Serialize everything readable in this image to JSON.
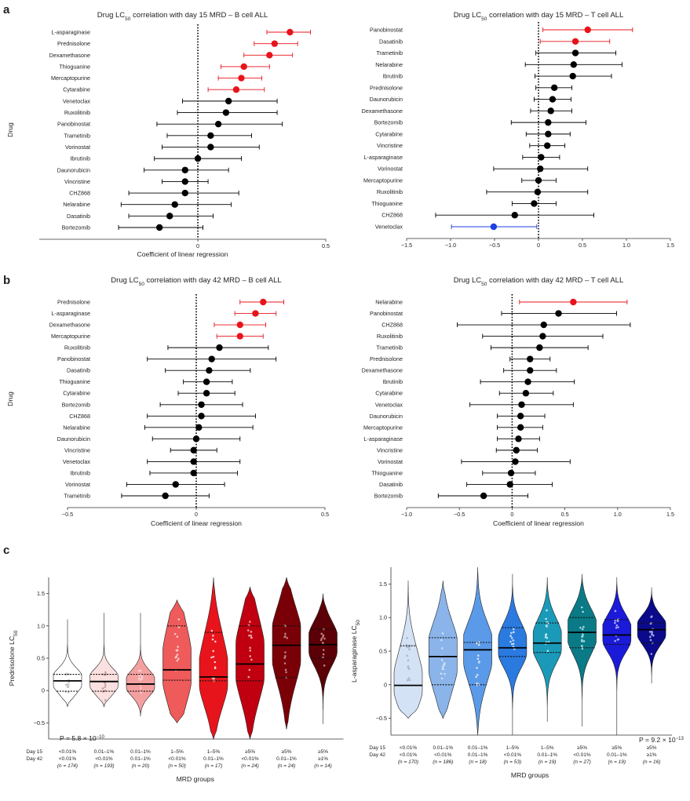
{
  "figure": {
    "panels": [
      "a",
      "b",
      "c"
    ],
    "colors": {
      "red": "#e8141b",
      "black": "#000000",
      "blue": "#1f3fe0",
      "axis": "#333333"
    }
  },
  "chart_data": [
    {
      "id": "a-left",
      "type": "forest",
      "title": "Drug LC50 correlation with day 15 MRD – B cell ALL",
      "xlabel": "Coefficient of linear regression",
      "ylabel": "Drug",
      "xlim": [
        -0.62,
        0.5
      ],
      "xticks": [
        0,
        0.5
      ],
      "xtick_labels": [
        "0",
        "0.5"
      ],
      "rows": [
        {
          "drug": "L-asparaginase",
          "est": 0.36,
          "lo": 0.27,
          "hi": 0.44,
          "sig": "red"
        },
        {
          "drug": "Prednisolone",
          "est": 0.3,
          "lo": 0.22,
          "hi": 0.39,
          "sig": "red"
        },
        {
          "drug": "Dexamethasone",
          "est": 0.28,
          "lo": 0.18,
          "hi": 0.37,
          "sig": "red"
        },
        {
          "drug": "Thioguanine",
          "est": 0.18,
          "lo": 0.09,
          "hi": 0.28,
          "sig": "red"
        },
        {
          "drug": "Mercaptopurine",
          "est": 0.17,
          "lo": 0.08,
          "hi": 0.25,
          "sig": "red"
        },
        {
          "drug": "Cytarabine",
          "est": 0.15,
          "lo": 0.04,
          "hi": 0.26,
          "sig": "red"
        },
        {
          "drug": "Venetoclax",
          "est": 0.12,
          "lo": -0.06,
          "hi": 0.31,
          "sig": "black"
        },
        {
          "drug": "Ruxolitinib",
          "est": 0.11,
          "lo": -0.08,
          "hi": 0.31,
          "sig": "black"
        },
        {
          "drug": "Panobinostat",
          "est": 0.08,
          "lo": -0.16,
          "hi": 0.33,
          "sig": "black"
        },
        {
          "drug": "Trametinib",
          "est": 0.05,
          "lo": -0.12,
          "hi": 0.21,
          "sig": "black"
        },
        {
          "drug": "Vorinostat",
          "est": 0.05,
          "lo": -0.14,
          "hi": 0.24,
          "sig": "black"
        },
        {
          "drug": "Ibrutinib",
          "est": 0.0,
          "lo": -0.17,
          "hi": 0.17,
          "sig": "black"
        },
        {
          "drug": "Daunorubicin",
          "est": -0.05,
          "lo": -0.21,
          "hi": 0.12,
          "sig": "black"
        },
        {
          "drug": "Vincristine",
          "est": -0.05,
          "lo": -0.14,
          "hi": 0.04,
          "sig": "black"
        },
        {
          "drug": "CHZ868",
          "est": -0.05,
          "lo": -0.27,
          "hi": 0.16,
          "sig": "black"
        },
        {
          "drug": "Nelarabine",
          "est": -0.09,
          "lo": -0.3,
          "hi": 0.13,
          "sig": "black"
        },
        {
          "drug": "Dasatinib",
          "est": -0.11,
          "lo": -0.27,
          "hi": 0.06,
          "sig": "black"
        },
        {
          "drug": "Bortezomib",
          "est": -0.15,
          "lo": -0.31,
          "hi": 0.02,
          "sig": "black"
        }
      ]
    },
    {
      "id": "a-right",
      "type": "forest",
      "title": "Drug LC50 correlation with day 15 MRD – T cell ALL",
      "xlabel": "",
      "ylabel": "",
      "xlim": [
        -1.5,
        1.5
      ],
      "xticks": [
        -1.5,
        -1.0,
        -0.5,
        0,
        0.5,
        1.0,
        1.5
      ],
      "xtick_labels": [
        "−1.5",
        "−1.0",
        "−0.5",
        "0",
        "0.5",
        "1.0",
        "1.5"
      ],
      "rows": [
        {
          "drug": "Panobinostat",
          "est": 0.56,
          "lo": 0.05,
          "hi": 1.07,
          "sig": "red"
        },
        {
          "drug": "Dasatinib",
          "est": 0.42,
          "lo": 0.02,
          "hi": 0.81,
          "sig": "red"
        },
        {
          "drug": "Trametinib",
          "est": 0.42,
          "lo": -0.03,
          "hi": 0.88,
          "sig": "black"
        },
        {
          "drug": "Nelarabine",
          "est": 0.4,
          "lo": -0.15,
          "hi": 0.95,
          "sig": "black"
        },
        {
          "drug": "Ibrutinib",
          "est": 0.39,
          "lo": -0.04,
          "hi": 0.83,
          "sig": "black"
        },
        {
          "drug": "Prednisolone",
          "est": 0.18,
          "lo": -0.03,
          "hi": 0.38,
          "sig": "black"
        },
        {
          "drug": "Daunorubicin",
          "est": 0.16,
          "lo": -0.05,
          "hi": 0.37,
          "sig": "black"
        },
        {
          "drug": "Dexamethasone",
          "est": 0.14,
          "lo": -0.09,
          "hi": 0.38,
          "sig": "black"
        },
        {
          "drug": "Bortezomib",
          "est": 0.11,
          "lo": -0.31,
          "hi": 0.54,
          "sig": "black"
        },
        {
          "drug": "Cytarabine",
          "est": 0.11,
          "lo": -0.14,
          "hi": 0.36,
          "sig": "black"
        },
        {
          "drug": "Vincristine",
          "est": 0.1,
          "lo": -0.1,
          "hi": 0.3,
          "sig": "black"
        },
        {
          "drug": "L-asparaginase",
          "est": 0.03,
          "lo": -0.18,
          "hi": 0.24,
          "sig": "black"
        },
        {
          "drug": "Vorinostat",
          "est": 0.02,
          "lo": -0.51,
          "hi": 0.56,
          "sig": "black"
        },
        {
          "drug": "Mercaptopurine",
          "est": 0.0,
          "lo": -0.19,
          "hi": 0.2,
          "sig": "black"
        },
        {
          "drug": "Ruxolitinib",
          "est": -0.01,
          "lo": -0.59,
          "hi": 0.56,
          "sig": "black"
        },
        {
          "drug": "Thioguanine",
          "est": -0.05,
          "lo": -0.3,
          "hi": 0.2,
          "sig": "black"
        },
        {
          "drug": "CHZ868",
          "est": -0.27,
          "lo": -1.17,
          "hi": 0.63,
          "sig": "black"
        },
        {
          "drug": "Venetoclax",
          "est": -0.51,
          "lo": -0.99,
          "hi": -0.02,
          "sig": "blue"
        }
      ]
    },
    {
      "id": "b-left",
      "type": "forest",
      "title": "Drug LC50 correlation with day 42 MRD – B cell ALL",
      "xlabel": "Coefficient of linear regression",
      "ylabel": "Drug",
      "xlim": [
        -0.5,
        0.5
      ],
      "xticks": [
        -0.5,
        0,
        0.5
      ],
      "xtick_labels": [
        "−0.5",
        "0",
        "0.5"
      ],
      "rows": [
        {
          "drug": "Prednisolone",
          "est": 0.26,
          "lo": 0.17,
          "hi": 0.34,
          "sig": "red"
        },
        {
          "drug": "L-asparaginase",
          "est": 0.23,
          "lo": 0.15,
          "hi": 0.31,
          "sig": "red"
        },
        {
          "drug": "Dexamethasone",
          "est": 0.17,
          "lo": 0.07,
          "hi": 0.27,
          "sig": "red"
        },
        {
          "drug": "Mercaptopurine",
          "est": 0.17,
          "lo": 0.08,
          "hi": 0.26,
          "sig": "red"
        },
        {
          "drug": "Ruxolitinib",
          "est": 0.09,
          "lo": -0.11,
          "hi": 0.28,
          "sig": "black"
        },
        {
          "drug": "Panobinostat",
          "est": 0.06,
          "lo": -0.19,
          "hi": 0.31,
          "sig": "black"
        },
        {
          "drug": "Dasatinib",
          "est": 0.05,
          "lo": -0.12,
          "hi": 0.21,
          "sig": "black"
        },
        {
          "drug": "Thioguanine",
          "est": 0.04,
          "lo": -0.05,
          "hi": 0.14,
          "sig": "black"
        },
        {
          "drug": "Cytarabine",
          "est": 0.04,
          "lo": -0.07,
          "hi": 0.15,
          "sig": "black"
        },
        {
          "drug": "Bortezomib",
          "est": 0.02,
          "lo": -0.14,
          "hi": 0.18,
          "sig": "black"
        },
        {
          "drug": "CHZ868",
          "est": 0.02,
          "lo": -0.19,
          "hi": 0.23,
          "sig": "black"
        },
        {
          "drug": "Nelarabine",
          "est": 0.01,
          "lo": -0.2,
          "hi": 0.22,
          "sig": "black"
        },
        {
          "drug": "Daunorubicin",
          "est": 0.0,
          "lo": -0.17,
          "hi": 0.17,
          "sig": "black"
        },
        {
          "drug": "Vincristine",
          "est": -0.01,
          "lo": -0.1,
          "hi": 0.08,
          "sig": "black"
        },
        {
          "drug": "Venetoclax",
          "est": -0.01,
          "lo": -0.19,
          "hi": 0.17,
          "sig": "black"
        },
        {
          "drug": "Ibrutinib",
          "est": -0.01,
          "lo": -0.18,
          "hi": 0.16,
          "sig": "black"
        },
        {
          "drug": "Vorinostat",
          "est": -0.08,
          "lo": -0.27,
          "hi": 0.11,
          "sig": "black"
        },
        {
          "drug": "Trametinib",
          "est": -0.12,
          "lo": -0.29,
          "hi": 0.05,
          "sig": "black"
        }
      ]
    },
    {
      "id": "b-right",
      "type": "forest",
      "title": "Drug LC50 correlation with day 42 MRD – T cell ALL",
      "xlabel": "Coefficient of linear regression",
      "ylabel": "",
      "xlim": [
        -1.0,
        1.5
      ],
      "xticks": [
        -1.0,
        -0.5,
        0,
        0.5,
        1.0,
        1.5
      ],
      "xtick_labels": [
        "−1.0",
        "−0.5",
        "0",
        "0.5",
        "1.0",
        "1.5"
      ],
      "rows": [
        {
          "drug": "Nelarabine",
          "est": 0.58,
          "lo": 0.07,
          "hi": 1.09,
          "sig": "red"
        },
        {
          "drug": "Panobinostat",
          "est": 0.44,
          "lo": -0.1,
          "hi": 0.99,
          "sig": "black"
        },
        {
          "drug": "CHZ868",
          "est": 0.3,
          "lo": -0.52,
          "hi": 1.12,
          "sig": "black"
        },
        {
          "drug": "Ruxolitinib",
          "est": 0.29,
          "lo": -0.28,
          "hi": 0.86,
          "sig": "black"
        },
        {
          "drug": "Trametinib",
          "est": 0.26,
          "lo": -0.2,
          "hi": 0.72,
          "sig": "black"
        },
        {
          "drug": "Prednisolone",
          "est": 0.17,
          "lo": -0.02,
          "hi": 0.36,
          "sig": "black"
        },
        {
          "drug": "Dexamethasone",
          "est": 0.17,
          "lo": -0.08,
          "hi": 0.42,
          "sig": "black"
        },
        {
          "drug": "Ibrutinib",
          "est": 0.15,
          "lo": -0.3,
          "hi": 0.59,
          "sig": "black"
        },
        {
          "drug": "Cytarabine",
          "est": 0.13,
          "lo": -0.12,
          "hi": 0.39,
          "sig": "black"
        },
        {
          "drug": "Venetoclax",
          "est": 0.09,
          "lo": -0.4,
          "hi": 0.58,
          "sig": "black"
        },
        {
          "drug": "Daunorubicin",
          "est": 0.08,
          "lo": -0.14,
          "hi": 0.31,
          "sig": "black"
        },
        {
          "drug": "Mercaptopurine",
          "est": 0.08,
          "lo": -0.14,
          "hi": 0.29,
          "sig": "black"
        },
        {
          "drug": "L-asparaginase",
          "est": 0.06,
          "lo": -0.14,
          "hi": 0.26,
          "sig": "black"
        },
        {
          "drug": "Vincristine",
          "est": 0.04,
          "lo": -0.15,
          "hi": 0.24,
          "sig": "black"
        },
        {
          "drug": "Vorinostat",
          "est": 0.03,
          "lo": -0.48,
          "hi": 0.55,
          "sig": "black"
        },
        {
          "drug": "Thioguanine",
          "est": -0.01,
          "lo": -0.28,
          "hi": 0.22,
          "sig": "black"
        },
        {
          "drug": "Dasatinib",
          "est": -0.02,
          "lo": -0.43,
          "hi": 0.38,
          "sig": "black"
        },
        {
          "drug": "Bortezomib",
          "est": -0.27,
          "lo": -0.7,
          "hi": 0.15,
          "sig": "black"
        }
      ]
    },
    {
      "id": "c-left",
      "type": "violin",
      "ylabel": "Prednisolone LC50",
      "xlabel": "MRD groups",
      "ylim": [
        -0.75,
        1.75
      ],
      "yticks": [
        -0.5,
        0,
        0.5,
        1.0,
        1.5
      ],
      "ytick_labels": [
        "−0.5",
        "0",
        "0.5",
        "1.0",
        "1.5"
      ],
      "row_labels": [
        "Day 15",
        "Day 42"
      ],
      "pvalue_prefix": "P = 5.8 × 10",
      "pvalue_exp": "−10",
      "groups": [
        {
          "d15": "<0.01%",
          "d42": "<0.01%",
          "n": "(n = 174)",
          "color": "#ffffff",
          "dots": "#c0c0c0",
          "min": -0.25,
          "max": 1.1,
          "q1": -0.01,
          "median": 0.15,
          "q3": 0.25
        },
        {
          "d15": "0.01–1%",
          "d42": "<0.01%",
          "n": "(n = 193)",
          "color": "#fbe0e0",
          "dots": "#c8a0a0",
          "min": -0.25,
          "max": 1.2,
          "q1": -0.01,
          "median": 0.14,
          "q3": 0.25
        },
        {
          "d15": "0.01–1%",
          "d42": "0.01–1%",
          "n": "(n = 20)",
          "color": "#f5a0a0",
          "dots": "#f8d0d0",
          "min": -0.4,
          "max": 1.2,
          "q1": -0.01,
          "median": 0.1,
          "q3": 0.25
        },
        {
          "d15": "1–5%",
          "d42": "<0.01%",
          "n": "(n = 50)",
          "color": "#ef5a5a",
          "dots": "#f8c8c8",
          "min": -0.5,
          "max": 1.4,
          "q1": 0.16,
          "median": 0.32,
          "q3": 1.0
        },
        {
          "d15": "1–5%",
          "d42": "0.01–1%",
          "n": "(n = 17)",
          "color": "#e8141b",
          "dots": "#f8c8c8",
          "min": -0.75,
          "max": 1.75,
          "q1": 0.15,
          "median": 0.21,
          "q3": 0.9
        },
        {
          "d15": "≥5%",
          "d42": "<0.01%",
          "n": "(n = 24)",
          "color": "#c00010",
          "dots": "#e8a0a0",
          "min": -0.75,
          "max": 1.6,
          "q1": 0.15,
          "median": 0.41,
          "q3": 1.0
        },
        {
          "d15": "≥5%",
          "d42": "0.01–1%",
          "n": "(n = 24)",
          "color": "#7a0008",
          "dots": "#c08080",
          "min": -0.6,
          "max": 1.75,
          "q1": 0.2,
          "median": 0.7,
          "q3": 1.0
        },
        {
          "d15": "≥5%",
          "d42": "≥1%",
          "n": "(n = 14)",
          "color": "#5a0006",
          "dots": "#c08080",
          "min": -0.52,
          "max": 1.5,
          "q1": 0.5,
          "median": 0.71,
          "q3": 0.95
        }
      ]
    },
    {
      "id": "c-right",
      "type": "violin",
      "ylabel": "L-asparaginase LC50",
      "xlabel": "MRD groups",
      "ylim": [
        -0.75,
        1.75
      ],
      "yticks": [
        -0.5,
        0,
        0.5,
        1.0,
        1.5
      ],
      "ytick_labels": [
        "−0.5",
        "0",
        "0.5",
        "1.0",
        "1.5"
      ],
      "row_labels": [
        "Day 15",
        "Day 42"
      ],
      "pvalue_prefix": "P = 9.2 × 10",
      "pvalue_exp": "−13",
      "groups": [
        {
          "d15": "<0.01%",
          "d42": "<0.01%",
          "n": "(n = 170)",
          "color": "#d4e2f5",
          "dots": "#a8b8d0",
          "min": -0.5,
          "max": 1.55,
          "q1": -0.01,
          "median": -0.01,
          "q3": 0.58
        },
        {
          "d15": "0.01–1%",
          "d42": "<0.01%",
          "n": "(n = 186)",
          "color": "#8ab4ea",
          "dots": "#d0e0f5",
          "min": -0.5,
          "max": 1.55,
          "q1": 0.0,
          "median": 0.42,
          "q3": 0.7
        },
        {
          "d15": "0.01–1%",
          "d42": "0.01–1%",
          "n": "(n = 18)",
          "color": "#5a9ae8",
          "dots": "#d0e0f8",
          "min": -0.75,
          "max": 1.75,
          "q1": 0.0,
          "median": 0.52,
          "q3": 0.63
        },
        {
          "d15": "1–5%",
          "d42": "<0.01%",
          "n": "(n = 53)",
          "color": "#2a7ae0",
          "dots": "#c0d8f5",
          "min": -0.75,
          "max": 1.65,
          "q1": 0.42,
          "median": 0.55,
          "q3": 0.85
        },
        {
          "d15": "1–5%",
          "d42": "0.01–1%",
          "n": "(n = 19)",
          "color": "#1a9ab8",
          "dots": "#c0e8f0",
          "min": -0.55,
          "max": 1.6,
          "q1": 0.48,
          "median": 0.62,
          "q3": 0.92
        },
        {
          "d15": "≥5%",
          "d42": "<0.01%",
          "n": "(n = 27)",
          "color": "#0a7a86",
          "dots": "#a0d8dc",
          "min": -0.62,
          "max": 1.65,
          "q1": 0.55,
          "median": 0.78,
          "q3": 1.0
        },
        {
          "d15": "≥5%",
          "d42": "0.01–1%",
          "n": "(n = 19)",
          "color": "#1a1ad8",
          "dots": "#a8a8f0",
          "min": -0.75,
          "max": 1.6,
          "q1": 0.6,
          "median": 0.74,
          "q3": 0.97
        },
        {
          "d15": "≥5%",
          "d42": "≥1%",
          "n": "(n = 16)",
          "color": "#0a0a8a",
          "dots": "#a0a0e0",
          "min": 0.02,
          "max": 1.45,
          "q1": 0.62,
          "median": 0.82,
          "q3": 0.92
        }
      ]
    }
  ]
}
